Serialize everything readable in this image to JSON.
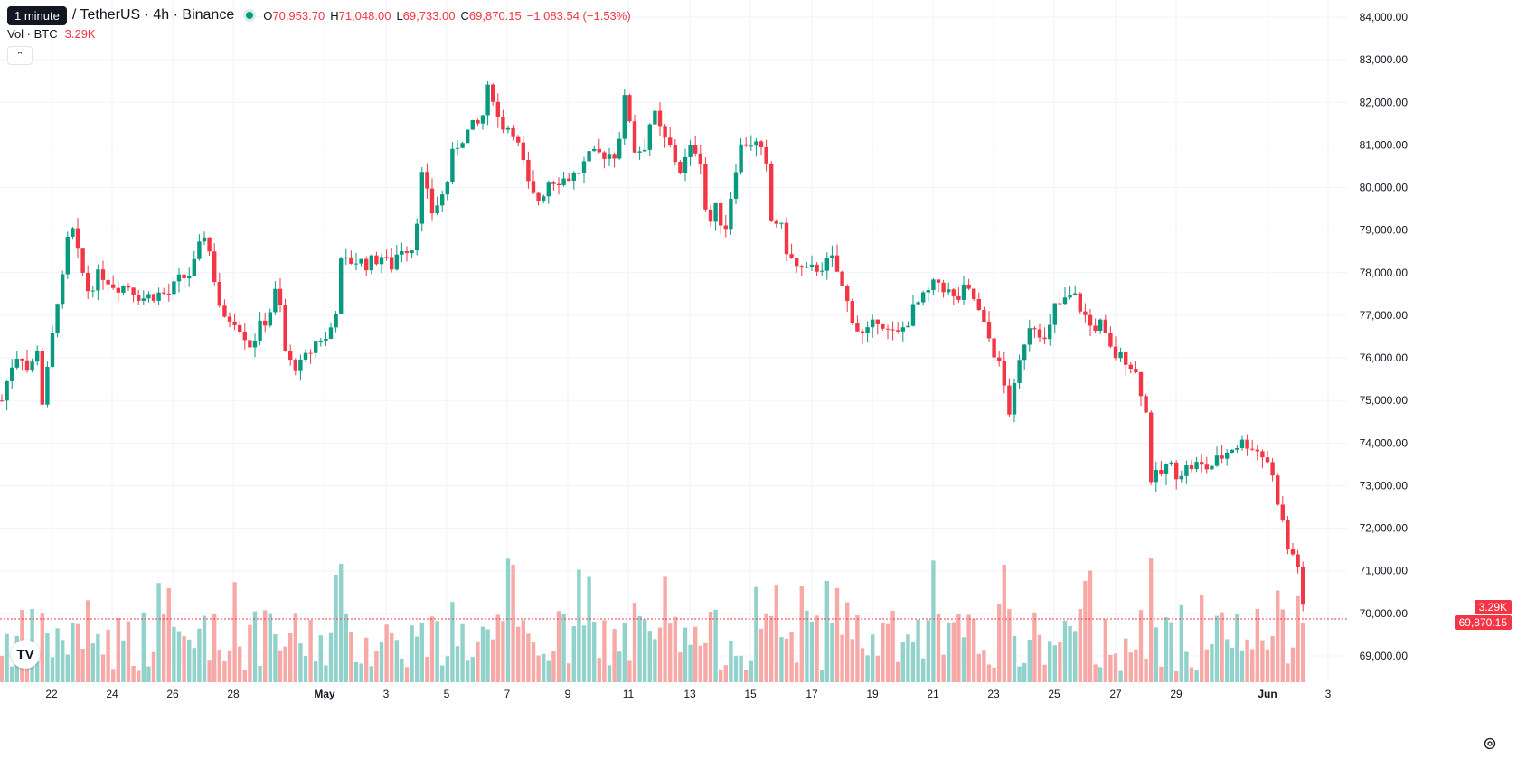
{
  "header": {
    "tooltip": "1 minute",
    "symbol": "/ TetherUS · 4h · Binance",
    "ohlc": [
      {
        "k": "O",
        "v": "70,953.70"
      },
      {
        "k": "H",
        "v": "71,048.00"
      },
      {
        "k": "L",
        "v": "69,733.00"
      },
      {
        "k": "C",
        "v": "69,870.15"
      }
    ],
    "change": "−1,083.54 (−1.53%)"
  },
  "volume_legend": {
    "label": "Vol · BTC",
    "value": "3.29K"
  },
  "last_volume_tag": "3.29K",
  "last_price_tag": "69,870.15",
  "colors": {
    "up": "#089981",
    "down": "#f23645",
    "up_vol": "#92d2cc",
    "down_vol": "#f7a9a7",
    "grid": "#f0f3fa"
  },
  "icons": {
    "logo": "tradingview-logo-icon",
    "settings": "gear-icon",
    "collapse": "chevron-up-icon"
  },
  "chart_data": {
    "type": "candlestick",
    "timeframe": "4h",
    "y_axis_ticks": [
      "84,000.00",
      "83,000.00",
      "82,000.00",
      "81,000.00",
      "80,000.00",
      "79,000.00",
      "78,000.00",
      "77,000.00",
      "76,000.00",
      "75,000.00",
      "74,000.00",
      "73,000.00",
      "72,000.00",
      "71,000.00",
      "70,000.00",
      "69,000.00"
    ],
    "x_axis_labels": [
      "22",
      "24",
      "26",
      "28",
      "May",
      "3",
      "5",
      "7",
      "9",
      "11",
      "13",
      "15",
      "17",
      "19",
      "21",
      "23",
      "25",
      "27",
      "29",
      "Jun",
      "3"
    ],
    "ylim": [
      68600,
      84300
    ],
    "close_path": [
      [
        0,
        75000
      ],
      [
        10,
        75800
      ],
      [
        20,
        76200
      ],
      [
        30,
        75600
      ],
      [
        40,
        76300
      ],
      [
        45,
        74900
      ],
      [
        55,
        76300
      ],
      [
        60,
        77300
      ],
      [
        70,
        78000
      ],
      [
        75,
        79300
      ],
      [
        85,
        78300
      ],
      [
        95,
        77600
      ],
      [
        110,
        78000
      ],
      [
        125,
        77700
      ],
      [
        140,
        77700
      ],
      [
        155,
        77400
      ],
      [
        170,
        77500
      ],
      [
        185,
        77500
      ],
      [
        195,
        77800
      ],
      [
        210,
        78000
      ],
      [
        225,
        79000
      ],
      [
        235,
        77900
      ],
      [
        245,
        76800
      ],
      [
        255,
        77000
      ],
      [
        265,
        76700
      ],
      [
        275,
        76300
      ],
      [
        285,
        76700
      ],
      [
        295,
        77000
      ],
      [
        305,
        77700
      ],
      [
        315,
        75900
      ],
      [
        330,
        75800
      ],
      [
        340,
        76100
      ],
      [
        350,
        76500
      ],
      [
        360,
        76400
      ],
      [
        370,
        77200
      ],
      [
        375,
        78200
      ],
      [
        390,
        78300
      ],
      [
        405,
        78200
      ],
      [
        420,
        78400
      ],
      [
        430,
        78100
      ],
      [
        440,
        78600
      ],
      [
        455,
        78600
      ],
      [
        465,
        80300
      ],
      [
        475,
        79400
      ],
      [
        490,
        79900
      ],
      [
        500,
        80900
      ],
      [
        510,
        81200
      ],
      [
        520,
        81400
      ],
      [
        530,
        81500
      ],
      [
        540,
        82500
      ],
      [
        550,
        81500
      ],
      [
        565,
        81400
      ],
      [
        575,
        80700
      ],
      [
        585,
        79800
      ],
      [
        595,
        79700
      ],
      [
        605,
        80200
      ],
      [
        620,
        80200
      ],
      [
        635,
        80300
      ],
      [
        650,
        80700
      ],
      [
        665,
        80800
      ],
      [
        680,
        80800
      ],
      [
        690,
        82200
      ],
      [
        700,
        80900
      ],
      [
        710,
        80900
      ],
      [
        720,
        81800
      ],
      [
        730,
        81200
      ],
      [
        740,
        80900
      ],
      [
        750,
        80400
      ],
      [
        765,
        81000
      ],
      [
        775,
        80600
      ],
      [
        780,
        79000
      ],
      [
        790,
        79500
      ],
      [
        800,
        79000
      ],
      [
        815,
        80900
      ],
      [
        825,
        81100
      ],
      [
        835,
        81000
      ],
      [
        845,
        80600
      ],
      [
        850,
        79200
      ],
      [
        860,
        79200
      ],
      [
        870,
        78400
      ],
      [
        880,
        78100
      ],
      [
        890,
        78000
      ],
      [
        900,
        78100
      ],
      [
        910,
        78200
      ],
      [
        920,
        78300
      ],
      [
        930,
        77600
      ],
      [
        940,
        77000
      ],
      [
        950,
        76500
      ],
      [
        960,
        76600
      ],
      [
        970,
        77000
      ],
      [
        980,
        76600
      ],
      [
        990,
        76500
      ],
      [
        1000,
        76800
      ],
      [
        1010,
        77200
      ],
      [
        1020,
        77400
      ],
      [
        1035,
        77800
      ],
      [
        1045,
        77600
      ],
      [
        1055,
        77300
      ],
      [
        1065,
        77600
      ],
      [
        1075,
        77400
      ],
      [
        1085,
        76800
      ],
      [
        1095,
        76300
      ],
      [
        1105,
        75700
      ],
      [
        1115,
        74700
      ],
      [
        1125,
        75800
      ],
      [
        1135,
        76800
      ],
      [
        1145,
        76800
      ],
      [
        1155,
        76300
      ],
      [
        1165,
        77200
      ],
      [
        1175,
        77300
      ],
      [
        1185,
        77500
      ],
      [
        1195,
        77100
      ],
      [
        1205,
        76700
      ],
      [
        1215,
        76800
      ],
      [
        1225,
        76200
      ],
      [
        1235,
        76000
      ],
      [
        1245,
        76000
      ],
      [
        1255,
        75600
      ],
      [
        1265,
        74900
      ],
      [
        1270,
        73200
      ],
      [
        1280,
        73200
      ],
      [
        1290,
        73500
      ],
      [
        1300,
        73300
      ],
      [
        1310,
        73400
      ],
      [
        1320,
        73500
      ],
      [
        1330,
        73400
      ],
      [
        1340,
        73500
      ],
      [
        1350,
        73700
      ],
      [
        1360,
        73900
      ],
      [
        1370,
        74000
      ],
      [
        1380,
        74000
      ],
      [
        1390,
        73800
      ],
      [
        1400,
        73600
      ],
      [
        1408,
        73000
      ],
      [
        1415,
        72300
      ],
      [
        1420,
        71800
      ],
      [
        1425,
        71200
      ],
      [
        1430,
        71500
      ],
      [
        1435,
        71000
      ],
      [
        1440,
        69870
      ]
    ]
  }
}
